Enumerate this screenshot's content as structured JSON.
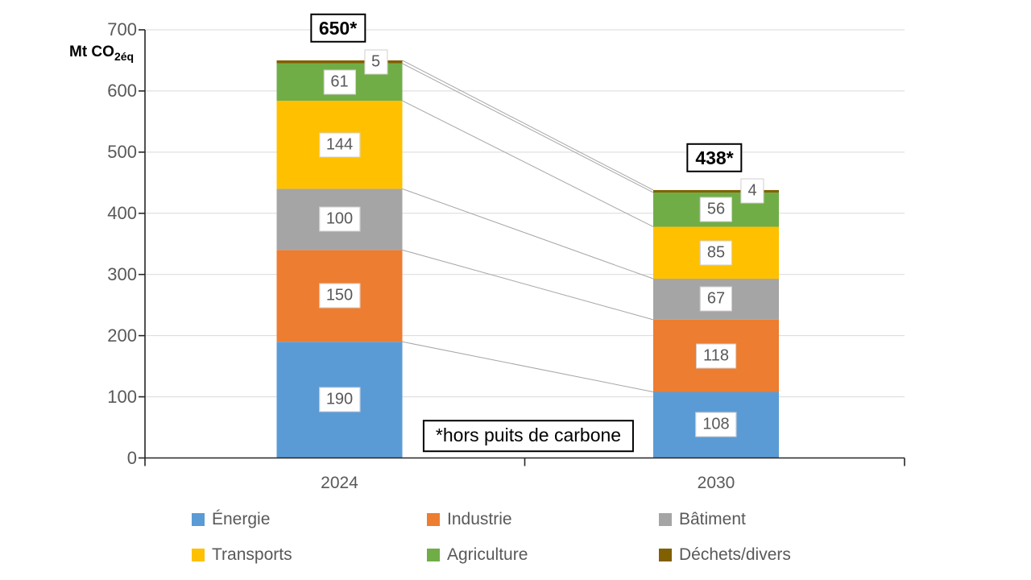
{
  "chart_data": {
    "type": "bar",
    "stacked": true,
    "categories": [
      "2024",
      "2030"
    ],
    "series": [
      {
        "name": "Énergie",
        "color": "#5B9BD5",
        "values": [
          190,
          108
        ]
      },
      {
        "name": "Industrie",
        "color": "#ED7D31",
        "values": [
          150,
          118
        ]
      },
      {
        "name": "Bâtiment",
        "color": "#A5A5A5",
        "values": [
          100,
          67
        ]
      },
      {
        "name": "Transports",
        "color": "#FFC000",
        "values": [
          144,
          85
        ]
      },
      {
        "name": "Agriculture",
        "color": "#70AD47",
        "values": [
          61,
          56
        ]
      },
      {
        "name": "Déchets/divers",
        "color": "#806000",
        "values": [
          5,
          4
        ]
      }
    ],
    "totals": [
      "650*",
      "438*"
    ],
    "ylabel_main": "Mt CO",
    "ylabel_sub": "2éq",
    "yticks": [
      0,
      100,
      200,
      300,
      400,
      500,
      600,
      700
    ],
    "ylim": [
      0,
      700
    ],
    "note": "*hors puits de carbone",
    "grid": true,
    "legend_position": "bottom"
  },
  "colors": {
    "background": "#FFFFFF",
    "grid": "#D9D9D9",
    "axis": "#262626",
    "tick_label": "#595959",
    "connector": "#A6A6A6",
    "segment_label_text": "#595959",
    "segment_label_border": "#D0CECE",
    "annotation_border": "#000000"
  }
}
